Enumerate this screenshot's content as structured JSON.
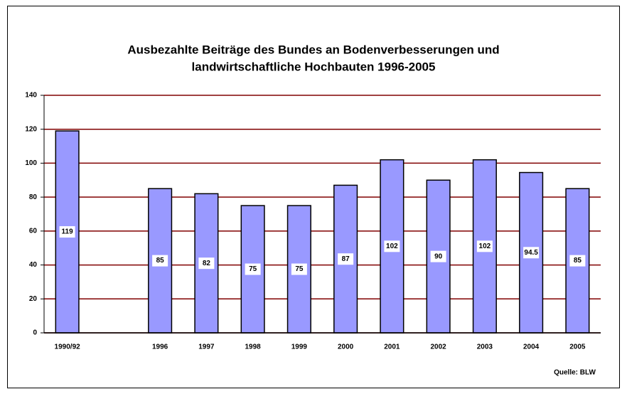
{
  "chart_data": {
    "type": "bar",
    "title": [
      "Ausbezahlte Beiträge des Bundes an Bodenverbesserungen und",
      "landwirtschaftliche Hochbauten 1996-2005"
    ],
    "source": "Quelle: BLW",
    "categories": [
      "1990/92",
      null,
      "1996",
      "1997",
      "1998",
      "1999",
      "2000",
      "2001",
      "2002",
      "2003",
      "2004",
      "2005"
    ],
    "values": [
      119,
      null,
      85,
      82,
      75,
      75,
      87,
      102,
      90,
      102,
      94.5,
      85
    ],
    "color": "#9999ff",
    "grid_color": "#800000",
    "ylim": [
      0,
      140
    ],
    "yticks": [
      0,
      20,
      40,
      60,
      80,
      100,
      120,
      140
    ],
    "grid": true
  }
}
